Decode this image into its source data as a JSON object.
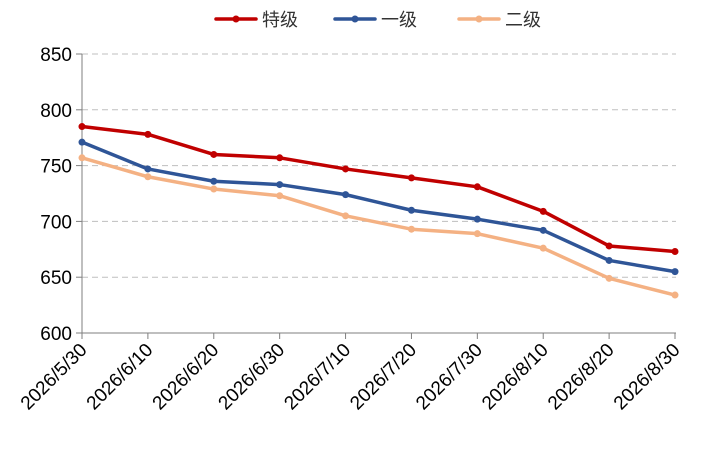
{
  "chart_data": {
    "type": "line",
    "title": "",
    "xlabel": "",
    "ylabel": "",
    "categories": [
      "2026/5/30",
      "2026/6/10",
      "2026/6/20",
      "2026/6/30",
      "2026/7/10",
      "2026/7/20",
      "2026/7/30",
      "2026/8/10",
      "2026/8/20",
      "2026/8/30"
    ],
    "ylim": [
      600,
      850
    ],
    "yticks": [
      600,
      650,
      700,
      750,
      800,
      850
    ],
    "grid": "horizontal-dashed",
    "legend_position": "top-center",
    "series": [
      {
        "name": "特级",
        "color": "#C00000",
        "values": [
          785,
          778,
          760,
          757,
          747,
          739,
          731,
          709,
          678,
          673
        ]
      },
      {
        "name": "一级",
        "color": "#2F5597",
        "values": [
          771,
          747,
          736,
          733,
          724,
          710,
          702,
          692,
          665,
          655
        ]
      },
      {
        "name": "二级",
        "color": "#F4B183",
        "values": [
          757,
          740,
          729,
          723,
          705,
          693,
          689,
          676,
          649,
          634
        ]
      }
    ]
  }
}
